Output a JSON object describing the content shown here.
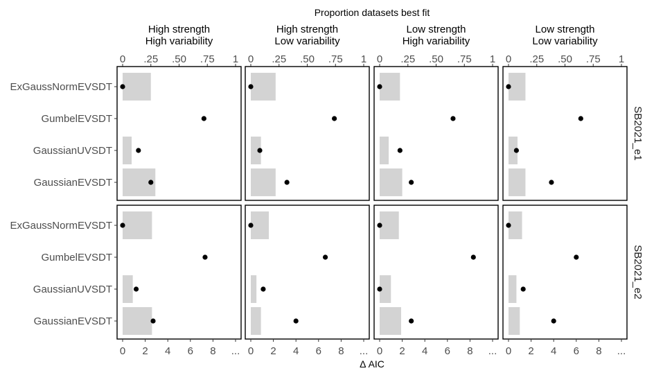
{
  "chart_data": {
    "type": "bar",
    "title": "",
    "top_axis_title": "Proportion datasets best fit",
    "bottom_axis_title": "Δ AIC",
    "top_axis_ticks": [
      "0",
      ".25",
      ".50",
      ".75",
      "1"
    ],
    "top_axis_range": [
      0,
      1
    ],
    "bottom_axis_ticks": [
      "0",
      "2",
      "4",
      "6",
      "8",
      "..."
    ],
    "bottom_axis_range": [
      0,
      10
    ],
    "categories": [
      "ExGaussNormEVSDT",
      "GumbelEVSDT",
      "GaussianUVSDT",
      "GaussianEVSDT"
    ],
    "columns": [
      {
        "line1": "High strength",
        "line2": "High variability"
      },
      {
        "line1": "High strength",
        "line2": "Low variability"
      },
      {
        "line1": "Low strength",
        "line2": "High variability"
      },
      {
        "line1": "Low strength",
        "line2": "Low variability"
      }
    ],
    "rows": [
      "SB2021_e1",
      "SB2021_e2"
    ],
    "bar_series_name": "Proportion datasets best fit",
    "point_series_name": "Δ AIC",
    "bar_color": "#d3d3d3",
    "point_color": "#000000",
    "grid": false,
    "panels": [
      {
        "row": 0,
        "col": 0,
        "proportion": [
          0.25,
          0.0,
          0.08,
          0.29
        ],
        "delta_aic": [
          0.0,
          7.2,
          1.4,
          2.5
        ]
      },
      {
        "row": 0,
        "col": 1,
        "proportion": [
          0.22,
          0.0,
          0.09,
          0.22
        ],
        "delta_aic": [
          0.0,
          7.4,
          0.8,
          3.2
        ]
      },
      {
        "row": 0,
        "col": 2,
        "proportion": [
          0.18,
          0.0,
          0.08,
          0.2
        ],
        "delta_aic": [
          0.0,
          6.5,
          1.8,
          2.8
        ]
      },
      {
        "row": 0,
        "col": 3,
        "proportion": [
          0.15,
          0.0,
          0.08,
          0.15
        ],
        "delta_aic": [
          0.0,
          6.4,
          0.7,
          3.8
        ]
      },
      {
        "row": 1,
        "col": 0,
        "proportion": [
          0.26,
          0.0,
          0.09,
          0.26
        ],
        "delta_aic": [
          0.0,
          7.3,
          1.2,
          2.7
        ]
      },
      {
        "row": 1,
        "col": 1,
        "proportion": [
          0.16,
          0.0,
          0.05,
          0.09
        ],
        "delta_aic": [
          0.0,
          6.6,
          1.1,
          4.0
        ]
      },
      {
        "row": 1,
        "col": 2,
        "proportion": [
          0.17,
          0.0,
          0.1,
          0.19
        ],
        "delta_aic": [
          0.0,
          8.3,
          0.0,
          2.8
        ]
      },
      {
        "row": 1,
        "col": 3,
        "proportion": [
          0.12,
          0.0,
          0.07,
          0.1
        ],
        "delta_aic": [
          0.0,
          6.0,
          1.3,
          4.0
        ]
      }
    ]
  }
}
